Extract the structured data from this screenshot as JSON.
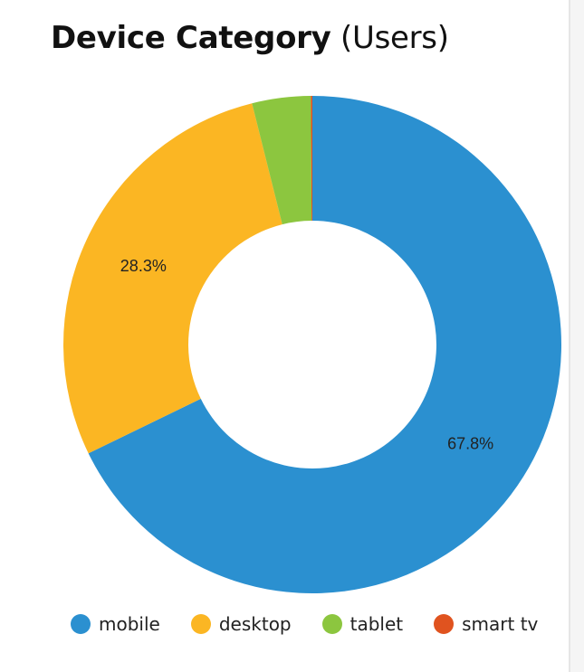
{
  "chart_data": {
    "type": "pie",
    "variant": "donut",
    "title": "Device Category",
    "subtitle": "(Users)",
    "categories": [
      "mobile",
      "desktop",
      "tablet",
      "smart tv"
    ],
    "values": [
      67.8,
      28.3,
      3.8,
      0.1
    ],
    "data_labels": [
      "67.8%",
      "28.3%",
      "",
      ""
    ],
    "colors": [
      "#2b90d0",
      "#fbb623",
      "#8cc63f",
      "#e0531f"
    ],
    "legend_position": "bottom"
  }
}
